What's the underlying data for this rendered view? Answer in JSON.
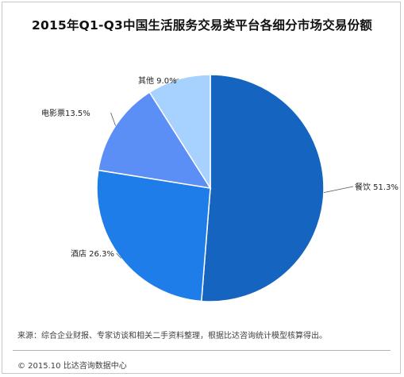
{
  "chart_data": {
    "type": "pie",
    "title": "2015年Q1-Q3中国生活服务交易类平台各细分市场交易份额",
    "slices": [
      {
        "label": "餐饮",
        "value": 51.3,
        "display": "餐饮 51.3%",
        "color": "#1565c0"
      },
      {
        "label": "酒店",
        "value": 26.3,
        "display": "酒店 26.3%",
        "color": "#1e7de8"
      },
      {
        "label": "电影票",
        "value": 13.5,
        "display": "电影票13.5%",
        "color": "#5b8ff5"
      },
      {
        "label": "其他",
        "value": 9.0,
        "display": "其他 9.0%",
        "color": "#a7d1ff"
      }
    ]
  },
  "footer": {
    "source": "来源：综合企业财报、专家访谈和相关二手资料整理，根据比达咨询统计模型核算得出。",
    "copyright": "© 2015.10  比达咨询数据中心"
  }
}
